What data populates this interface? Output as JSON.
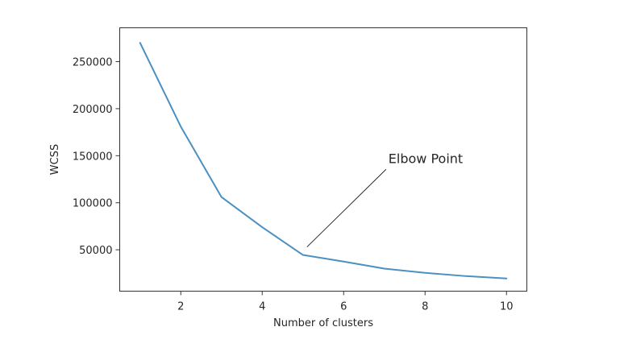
{
  "chart_data": {
    "type": "line",
    "title": "",
    "xlabel": "Number of clusters",
    "ylabel": "WCSS",
    "x": [
      1,
      2,
      3,
      4,
      5,
      6,
      7,
      8,
      9,
      10
    ],
    "series": [
      {
        "color": "#4a90c2",
        "values": [
          270000,
          181000,
          106000,
          74000,
          44500,
          37500,
          30000,
          25500,
          22000,
          19500
        ]
      }
    ],
    "xlim": [
      0.5,
      10.5
    ],
    "ylim": [
      6000,
      286000
    ],
    "xticks": [
      2,
      4,
      6,
      8,
      10
    ],
    "xtick_labels": [
      "2",
      "4",
      "6",
      "8",
      "10"
    ],
    "yticks": [
      50000,
      100000,
      150000,
      200000,
      250000
    ],
    "ytick_labels": [
      "50000",
      "100000",
      "150000",
      "200000",
      "250000"
    ],
    "grid": false,
    "annotations": [
      {
        "text": "Elbow Point",
        "point": [
          5.1,
          53000
        ],
        "text_pos": [
          7.1,
          138000
        ]
      }
    ]
  }
}
